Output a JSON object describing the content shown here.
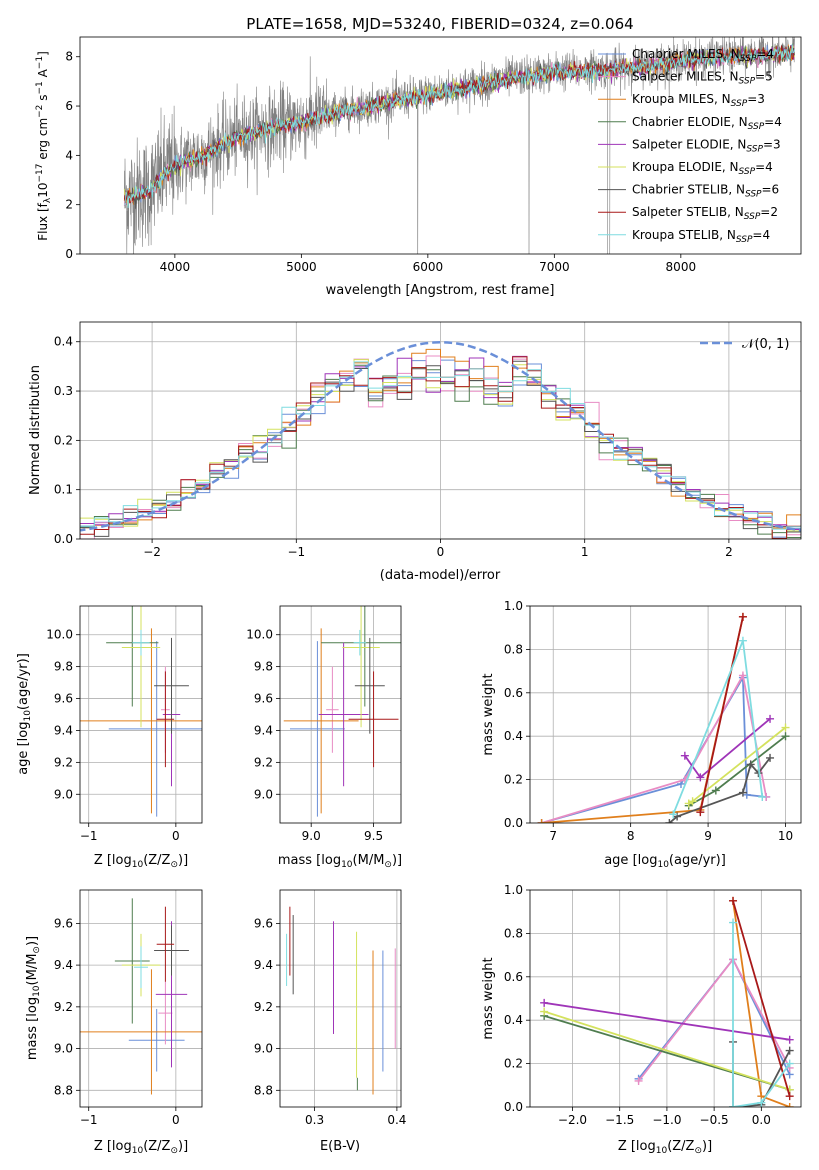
{
  "colors": {
    "c1": "#6a8fd8",
    "c2": "#e88cc4",
    "c3": "#e07f1c",
    "c4": "#4f7d4f",
    "c5": "#9f35b8",
    "c6": "#d4e25e",
    "c7": "#555555",
    "c8": "#a81919",
    "c9": "#7fdce0",
    "observed": "#808080",
    "grid": "#b0b0b0"
  },
  "models": [
    {
      "key": "c1",
      "label": "Chabrier MILES, N",
      "sub": "SSP",
      "tail": "=4"
    },
    {
      "key": "c2",
      "label": "Salpeter MILES, N",
      "sub": "SSP",
      "tail": "=5"
    },
    {
      "key": "c3",
      "label": "Kroupa MILES, N",
      "sub": "SSP",
      "tail": "=3"
    },
    {
      "key": "c4",
      "label": "Chabrier ELODIE, N",
      "sub": "SSP",
      "tail": "=4"
    },
    {
      "key": "c5",
      "label": "Salpeter ELODIE, N",
      "sub": "SSP",
      "tail": "=3"
    },
    {
      "key": "c6",
      "label": "Kroupa ELODIE, N",
      "sub": "SSP",
      "tail": "=4"
    },
    {
      "key": "c7",
      "label": "Chabrier STELIB, N",
      "sub": "SSP",
      "tail": "=6"
    },
    {
      "key": "c8",
      "label": "Salpeter STELIB, N",
      "sub": "SSP",
      "tail": "=2"
    },
    {
      "key": "c9",
      "label": "Kroupa STELIB, N",
      "sub": "SSP",
      "tail": "=4"
    }
  ],
  "chart_data": [
    {
      "id": "spectrum",
      "type": "line",
      "title": "PLATE=1658, MJD=53240, FIBERID=0324, z=0.064",
      "xlabel": "wavelength [Angstrom, rest frame]",
      "ylabel_main": "Flux [f",
      "ylabel_sub": "λ",
      "ylabel_rest": "10",
      "ylabel_exp1": "−17",
      "ylabel_mid": " erg cm",
      "ylabel_exp2": "−2",
      "ylabel_mid2": " s",
      "ylabel_exp3": "−1",
      "ylabel_mid3": " A",
      "ylabel_exp4": "−1",
      "ylabel_end": "]",
      "xlim": [
        3250,
        8950
      ],
      "ylim": [
        0,
        8.8
      ],
      "xticks": [
        "4000",
        "5000",
        "6000",
        "7000",
        "8000"
      ],
      "yticks": [
        "0",
        "2",
        "4",
        "6",
        "8"
      ],
      "continuum": [
        [
          3600,
          2.3
        ],
        [
          3800,
          2.6
        ],
        [
          3900,
          3.2
        ],
        [
          4000,
          3.6
        ],
        [
          4200,
          4.0
        ],
        [
          4500,
          4.8
        ],
        [
          4800,
          5.2
        ],
        [
          5000,
          5.4
        ],
        [
          5300,
          5.8
        ],
        [
          5600,
          6.1
        ],
        [
          6000,
          6.5
        ],
        [
          6300,
          6.8
        ],
        [
          6600,
          7.1
        ],
        [
          7000,
          7.4
        ],
        [
          7400,
          7.5
        ],
        [
          7800,
          7.7
        ],
        [
          8200,
          8.0
        ],
        [
          8600,
          8.1
        ],
        [
          8900,
          8.2
        ]
      ]
    },
    {
      "id": "residuals",
      "type": "bar",
      "xlabel": "(data-model)/error",
      "ylabel": "Normed distribution",
      "xlim": [
        -2.5,
        2.5
      ],
      "ylim": [
        0,
        0.44
      ],
      "xticks": [
        "−2",
        "−1",
        "0",
        "1",
        "2"
      ],
      "yticks": [
        "0.0",
        "0.1",
        "0.2",
        "0.3",
        "0.4"
      ],
      "legend": "𝒩(0, 1)",
      "gaussian": {
        "mu": 0,
        "sigma": 1
      }
    },
    {
      "id": "age-vs-Z",
      "type": "scatter",
      "xlabel": "Z [log",
      "xlabel_sub": "10",
      "xlabel_rest": "(Z/Z",
      "xlabel_sun": "⊙",
      "xlabel_end": ")]",
      "ylabel": "age  [log",
      "ylabel_sub": "10",
      "ylabel_rest": "(age/yr)]",
      "xlim": [
        -1.1,
        0.3
      ],
      "ylim": [
        8.82,
        10.18
      ],
      "xticks": [
        "−1",
        "0"
      ],
      "yticks": [
        "9.0",
        "9.2",
        "9.4",
        "9.6",
        "9.8",
        "10.0"
      ],
      "points": [
        {
          "c": "c1",
          "x": -0.22,
          "y": 9.41,
          "xe": 0.55,
          "ye": 0.55
        },
        {
          "c": "c2",
          "x": -0.12,
          "y": 9.53,
          "xe": 0.05,
          "ye": 0.27
        },
        {
          "c": "c3",
          "x": -0.28,
          "y": 9.46,
          "xe": 0.82,
          "ye": 0.58
        },
        {
          "c": "c4",
          "x": -0.5,
          "y": 9.95,
          "xe": 0.3,
          "ye": 0.4
        },
        {
          "c": "c5",
          "x": -0.05,
          "y": 9.5,
          "xe": 0.1,
          "ye": 0.45
        },
        {
          "c": "c6",
          "x": -0.4,
          "y": 9.92,
          "xe": 0.22,
          "ye": 0.5
        },
        {
          "c": "c7",
          "x": -0.05,
          "y": 9.68,
          "xe": 0.2,
          "ye": 0.3
        },
        {
          "c": "c8",
          "x": -0.12,
          "y": 9.47,
          "xe": 0.1,
          "ye": 0.3
        },
        {
          "c": "c9",
          "x": -0.4,
          "y": 9.95,
          "xe": 0.1,
          "ye": 0.08
        }
      ]
    },
    {
      "id": "age-vs-mass",
      "type": "scatter",
      "xlabel": "mass [log",
      "xlabel_sub": "10",
      "xlabel_rest": "(M/M",
      "xlabel_sun": "⊙",
      "xlabel_end": ")]",
      "xlim": [
        8.75,
        9.72
      ],
      "ylim": [
        8.82,
        10.18
      ],
      "xticks": [
        "9.0",
        "9.5"
      ],
      "yticks": [
        "9.0",
        "9.2",
        "9.4",
        "9.6",
        "9.8",
        "10.0"
      ],
      "points": [
        {
          "c": "c1",
          "x": 9.05,
          "y": 9.41,
          "xe": 0.22,
          "ye": 0.55
        },
        {
          "c": "c2",
          "x": 9.17,
          "y": 9.53,
          "xe": 0.05,
          "ye": 0.27
        },
        {
          "c": "c3",
          "x": 9.08,
          "y": 9.46,
          "xe": 0.3,
          "ye": 0.58
        },
        {
          "c": "c4",
          "x": 9.43,
          "y": 9.95,
          "xe": 0.35,
          "ye": 0.4
        },
        {
          "c": "c5",
          "x": 9.26,
          "y": 9.5,
          "xe": 0.2,
          "ye": 0.45
        },
        {
          "c": "c6",
          "x": 9.4,
          "y": 9.92,
          "xe": 0.15,
          "ye": 0.5
        },
        {
          "c": "c7",
          "x": 9.47,
          "y": 9.68,
          "xe": 0.12,
          "ye": 0.3
        },
        {
          "c": "c8",
          "x": 9.5,
          "y": 9.47,
          "xe": 0.2,
          "ye": 0.3
        },
        {
          "c": "c9",
          "x": 9.39,
          "y": 9.95,
          "xe": 0.05,
          "ye": 0.08
        }
      ]
    },
    {
      "id": "weight-vs-age",
      "type": "line",
      "xlabel": "age  [log",
      "xlabel_sub": "10",
      "xlabel_rest": "(age/yr)]",
      "ylabel": "mass weight",
      "xlim": [
        6.7,
        10.2
      ],
      "ylim": [
        0,
        1
      ],
      "xticks": [
        "7",
        "8",
        "9",
        "10"
      ],
      "yticks": [
        "0.0",
        "0.2",
        "0.4",
        "0.6",
        "0.8",
        "1.0"
      ],
      "series": [
        {
          "c": "c1",
          "pts": [
            [
              6.85,
              0.0
            ],
            [
              8.65,
              0.18
            ],
            [
              9.45,
              0.67
            ],
            [
              9.5,
              0.13
            ],
            [
              9.75,
              0.12
            ]
          ]
        },
        {
          "c": "c2",
          "pts": [
            [
              6.85,
              0.0
            ],
            [
              8.7,
              0.2
            ],
            [
              9.45,
              0.68
            ],
            [
              9.75,
              0.12
            ]
          ]
        },
        {
          "c": "c3",
          "pts": [
            [
              6.85,
              0.0
            ],
            [
              8.9,
              0.06
            ],
            [
              9.45,
              0.95
            ]
          ]
        },
        {
          "c": "c4",
          "pts": [
            [
              8.75,
              0.08
            ],
            [
              9.1,
              0.15
            ],
            [
              10.0,
              0.4
            ]
          ]
        },
        {
          "c": "c5",
          "pts": [
            [
              8.7,
              0.31
            ],
            [
              8.9,
              0.21
            ],
            [
              9.8,
              0.48
            ]
          ]
        },
        {
          "c": "c6",
          "pts": [
            [
              8.75,
              0.09
            ],
            [
              8.8,
              0.1
            ],
            [
              10.0,
              0.44
            ]
          ]
        },
        {
          "c": "c7",
          "pts": [
            [
              8.5,
              0.0
            ],
            [
              8.6,
              0.03
            ],
            [
              9.45,
              0.14
            ],
            [
              9.55,
              0.27
            ],
            [
              9.65,
              0.23
            ],
            [
              9.8,
              0.3
            ]
          ]
        },
        {
          "c": "c8",
          "pts": [
            [
              8.9,
              0.05
            ],
            [
              9.45,
              0.95
            ]
          ]
        },
        {
          "c": "c9",
          "pts": [
            [
              8.55,
              0.04
            ],
            [
              9.45,
              0.84
            ],
            [
              9.7,
              0.12
            ]
          ]
        }
      ]
    },
    {
      "id": "mass-vs-Z",
      "type": "scatter",
      "xlabel": "Z [log",
      "xlabel_sub": "10",
      "xlabel_rest": "(Z/Z",
      "xlabel_sun": "⊙",
      "xlabel_end": ")]",
      "ylabel": "mass [log",
      "ylabel_sub": "10",
      "ylabel_rest": "(M/M",
      "ylabel_sun": "⊙",
      "ylabel_end": ")]",
      "xlim": [
        -1.1,
        0.3
      ],
      "ylim": [
        8.72,
        9.76
      ],
      "xticks": [
        "−1",
        "0"
      ],
      "yticks": [
        "8.8",
        "9.0",
        "9.2",
        "9.4",
        "9.6"
      ],
      "points": [
        {
          "c": "c1",
          "x": -0.22,
          "y": 9.04,
          "xe": 0.32,
          "ye": 0.15
        },
        {
          "c": "c2",
          "x": -0.12,
          "y": 9.17,
          "xe": 0.08,
          "ye": 0.15
        },
        {
          "c": "c3",
          "x": -0.28,
          "y": 9.08,
          "xe": 0.82,
          "ye": 0.3
        },
        {
          "c": "c4",
          "x": -0.5,
          "y": 9.42,
          "xe": 0.2,
          "ye": 0.3
        },
        {
          "c": "c5",
          "x": -0.05,
          "y": 9.26,
          "xe": 0.18,
          "ye": 0.35
        },
        {
          "c": "c6",
          "x": -0.4,
          "y": 9.4,
          "xe": 0.22,
          "ye": 0.15
        },
        {
          "c": "c7",
          "x": -0.05,
          "y": 9.47,
          "xe": 0.2,
          "ye": 0.12
        },
        {
          "c": "c8",
          "x": -0.12,
          "y": 9.5,
          "xe": 0.1,
          "ye": 0.18
        },
        {
          "c": "c9",
          "x": -0.4,
          "y": 9.39,
          "xe": 0.08,
          "ye": 0.1
        }
      ]
    },
    {
      "id": "mass-vs-EBV",
      "type": "scatter",
      "xlabel": "E(B-V)",
      "xlim": [
        0.258,
        0.405
      ],
      "ylim": [
        8.72,
        9.76
      ],
      "xticks": [
        "0.3",
        "0.4"
      ],
      "yticks": [
        "8.8",
        "9.0",
        "9.2",
        "9.4",
        "9.6"
      ],
      "bars": [
        {
          "c": "c9",
          "x": 0.266,
          "y0": 9.3,
          "y1": 9.55
        },
        {
          "c": "c8",
          "x": 0.27,
          "y0": 9.35,
          "y1": 9.68
        },
        {
          "c": "c7",
          "x": 0.274,
          "y0": 9.26,
          "y1": 9.64
        },
        {
          "c": "c5",
          "x": 0.323,
          "y0": 9.07,
          "y1": 9.61
        },
        {
          "c": "c6",
          "x": 0.351,
          "y0": 8.86,
          "y1": 9.56
        },
        {
          "c": "c4",
          "x": 0.352,
          "y0": 8.8,
          "y1": 8.86
        },
        {
          "c": "c3",
          "x": 0.371,
          "y0": 8.78,
          "y1": 9.47
        },
        {
          "c": "c1",
          "x": 0.383,
          "y0": 8.89,
          "y1": 9.47
        },
        {
          "c": "c2",
          "x": 0.398,
          "y0": 9.0,
          "y1": 9.48
        }
      ]
    },
    {
      "id": "weight-vs-Z",
      "type": "line",
      "xlabel": "Z [log",
      "xlabel_sub": "10",
      "xlabel_rest": "(Z/Z",
      "xlabel_sun": "⊙",
      "xlabel_end": ")]",
      "ylabel": "mass weight",
      "xlim": [
        -2.45,
        0.42
      ],
      "ylim": [
        0,
        1
      ],
      "xticks": [
        "−2.0",
        "−1.5",
        "−1.0",
        "−0.5",
        "0.0"
      ],
      "yticks": [
        "0.0",
        "0.2",
        "0.4",
        "0.6",
        "0.8",
        "1.0"
      ],
      "series": [
        {
          "c": "c1",
          "pts": [
            [
              -1.3,
              0.13
            ],
            [
              -0.3,
              0.68
            ],
            [
              0.3,
              0.15
            ]
          ]
        },
        {
          "c": "c2",
          "pts": [
            [
              -1.3,
              0.12
            ],
            [
              -0.3,
              0.68
            ],
            [
              0.3,
              0.18
            ]
          ]
        },
        {
          "c": "c3",
          "pts": [
            [
              -0.3,
              0.95
            ],
            [
              0.0,
              0.05
            ],
            [
              0.3,
              0.0
            ]
          ]
        },
        {
          "c": "c4",
          "pts": [
            [
              -2.3,
              0.42
            ],
            [
              0.3,
              0.08
            ]
          ]
        },
        {
          "c": "c5",
          "pts": [
            [
              -2.3,
              0.48
            ],
            [
              0.3,
              0.31
            ]
          ]
        },
        {
          "c": "c6",
          "pts": [
            [
              -2.3,
              0.44
            ],
            [
              0.3,
              0.08
            ]
          ]
        },
        {
          "c": "c7",
          "pts": [
            [
              -0.3,
              0.3
            ],
            [
              -0.3,
              0.0
            ],
            [
              0.0,
              0.01
            ],
            [
              0.3,
              0.26
            ]
          ]
        },
        {
          "c": "c8",
          "pts": [
            [
              -0.3,
              0.95
            ],
            [
              0.3,
              0.05
            ]
          ]
        },
        {
          "c": "c9",
          "pts": [
            [
              -0.3,
              0.85
            ],
            [
              -0.3,
              0.0
            ],
            [
              0.0,
              0.02
            ],
            [
              0.3,
              0.2
            ]
          ]
        }
      ]
    }
  ]
}
